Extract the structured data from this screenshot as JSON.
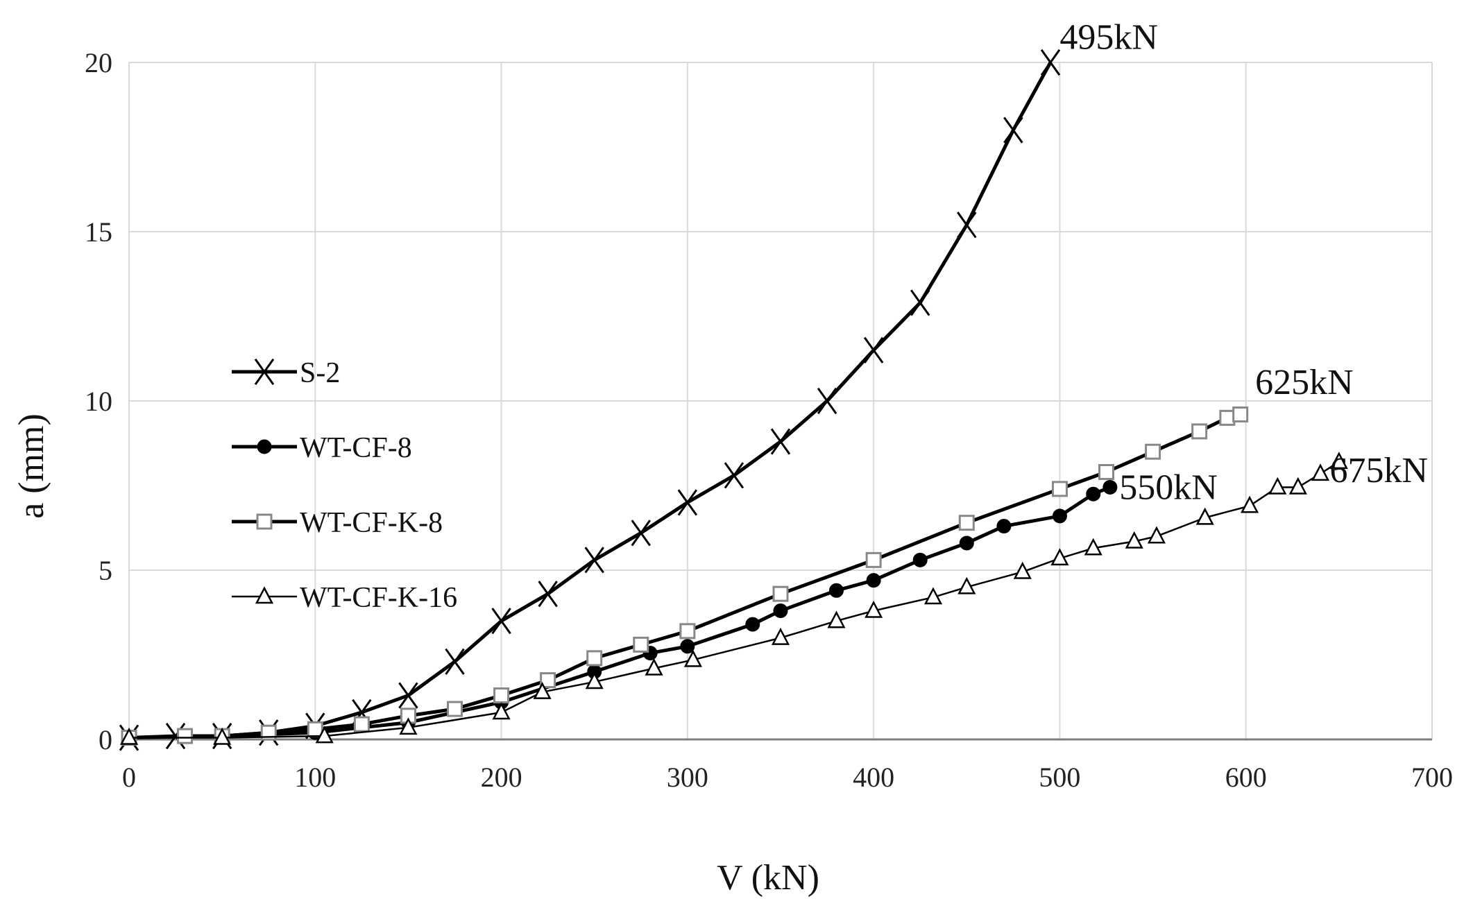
{
  "chart_data": {
    "type": "line",
    "title": "",
    "xlabel": "V (kN)",
    "ylabel": "a (mm)",
    "xlim": [
      0,
      700
    ],
    "ylim": [
      0,
      20
    ],
    "xticks": [
      0,
      100,
      200,
      300,
      400,
      500,
      600,
      700
    ],
    "yticks": [
      0,
      5,
      10,
      15,
      20
    ],
    "grid": true,
    "legend_position": "left",
    "series": [
      {
        "name": "S-2",
        "marker": "x",
        "line_weight": "heavy",
        "color": "#000000",
        "x": [
          0,
          25,
          50,
          75,
          100,
          125,
          150,
          175,
          200,
          225,
          250,
          275,
          300,
          325,
          350,
          375,
          400,
          425,
          450,
          475,
          495
        ],
        "y": [
          0.05,
          0.1,
          0.1,
          0.2,
          0.4,
          0.8,
          1.3,
          2.3,
          3.5,
          4.3,
          5.3,
          6.1,
          7.0,
          7.8,
          8.8,
          10.0,
          11.5,
          12.9,
          15.2,
          18.0,
          20.0
        ]
      },
      {
        "name": "WT-CF-8",
        "marker": "filled-circle",
        "line_weight": "heavy",
        "color": "#000000",
        "x": [
          0,
          50,
          100,
          150,
          200,
          250,
          280,
          300,
          335,
          350,
          380,
          400,
          425,
          450,
          470,
          500,
          518,
          527
        ],
        "y": [
          0.05,
          0.1,
          0.2,
          0.5,
          1.1,
          2.0,
          2.55,
          2.75,
          3.4,
          3.8,
          4.4,
          4.7,
          5.3,
          5.8,
          6.3,
          6.6,
          7.25,
          7.45
        ]
      },
      {
        "name": "WT-CF-K-8",
        "marker": "open-square",
        "line_weight": "heavy",
        "color": "#000000",
        "marker_color": "#888888",
        "x": [
          0,
          30,
          50,
          75,
          100,
          125,
          150,
          175,
          200,
          225,
          250,
          275,
          300,
          350,
          400,
          450,
          500,
          525,
          550,
          575,
          590,
          597
        ],
        "y": [
          0.05,
          0.1,
          0.1,
          0.2,
          0.3,
          0.45,
          0.7,
          0.9,
          1.3,
          1.75,
          2.4,
          2.8,
          3.2,
          4.3,
          5.3,
          6.4,
          7.4,
          7.9,
          8.5,
          9.1,
          9.5,
          9.6
        ]
      },
      {
        "name": "WT-CF-K-16",
        "marker": "open-triangle",
        "line_weight": "thin",
        "color": "#000000",
        "x": [
          0,
          50,
          105,
          150,
          200,
          222,
          250,
          282,
          303,
          350,
          380,
          400,
          432,
          450,
          480,
          500,
          518,
          540,
          552,
          578,
          602,
          617,
          628,
          640,
          650
        ],
        "y": [
          0.05,
          0.05,
          0.1,
          0.35,
          0.8,
          1.4,
          1.7,
          2.1,
          2.35,
          3.0,
          3.5,
          3.8,
          4.2,
          4.5,
          4.95,
          5.35,
          5.65,
          5.85,
          6.0,
          6.55,
          6.9,
          7.45,
          7.45,
          7.85,
          8.2
        ]
      }
    ],
    "annotations": [
      {
        "text": "495kN",
        "x": 500,
        "y": 20.4
      },
      {
        "text": "625kN",
        "x": 605,
        "y": 10.2
      },
      {
        "text": "550kN",
        "x": 532,
        "y": 7.1
      },
      {
        "text": "675kN",
        "x": 645,
        "y": 7.6
      }
    ]
  }
}
